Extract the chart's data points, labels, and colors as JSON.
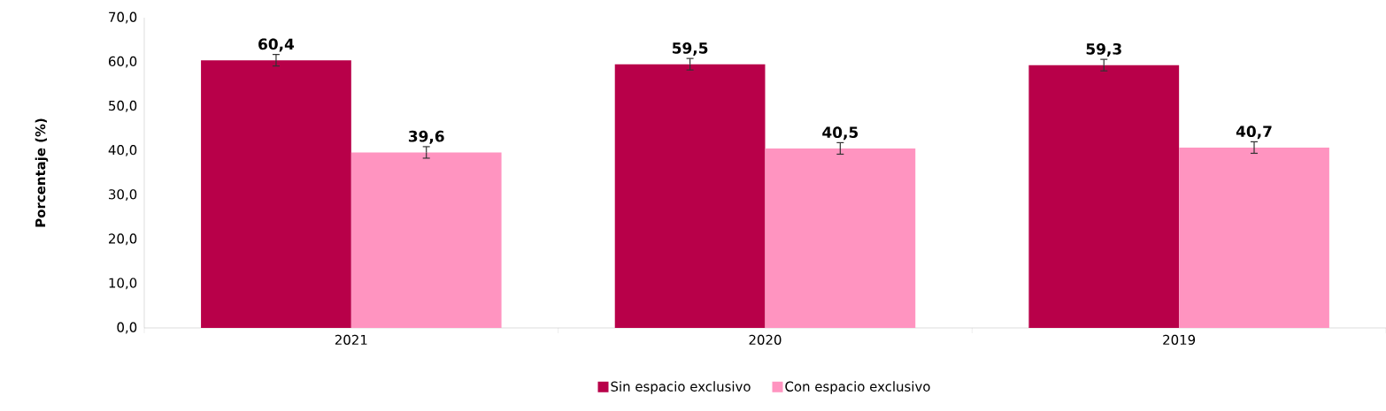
{
  "chart_data": {
    "type": "bar",
    "ylabel": "Porcentaje (%)",
    "categories": [
      "2021",
      "2020",
      "2019"
    ],
    "series": [
      {
        "name": "Sin espacio exclusivo",
        "color": "#b80049",
        "values": [
          60.4,
          59.5,
          59.3
        ],
        "errors": [
          1.3,
          1.3,
          1.3
        ],
        "value_labels": [
          "60,4",
          "59,5",
          "59,3"
        ]
      },
      {
        "name": "Con espacio exclusivo",
        "color": "#ff94c0",
        "values": [
          39.6,
          40.5,
          40.7
        ],
        "errors": [
          1.3,
          1.3,
          1.3
        ],
        "value_labels": [
          "39,6",
          "40,5",
          "40,7"
        ]
      }
    ],
    "ylim": [
      0,
      70
    ],
    "yticks": [
      {
        "value": 0,
        "label": "0,0"
      },
      {
        "value": 10,
        "label": "10,0"
      },
      {
        "value": 20,
        "label": "20,0"
      },
      {
        "value": 30,
        "label": "30,0"
      },
      {
        "value": 40,
        "label": "40,0"
      },
      {
        "value": 50,
        "label": "50,0"
      },
      {
        "value": 60,
        "label": "60,0"
      },
      {
        "value": 70,
        "label": "70,0"
      }
    ],
    "grid": false,
    "legend": "bottom"
  }
}
